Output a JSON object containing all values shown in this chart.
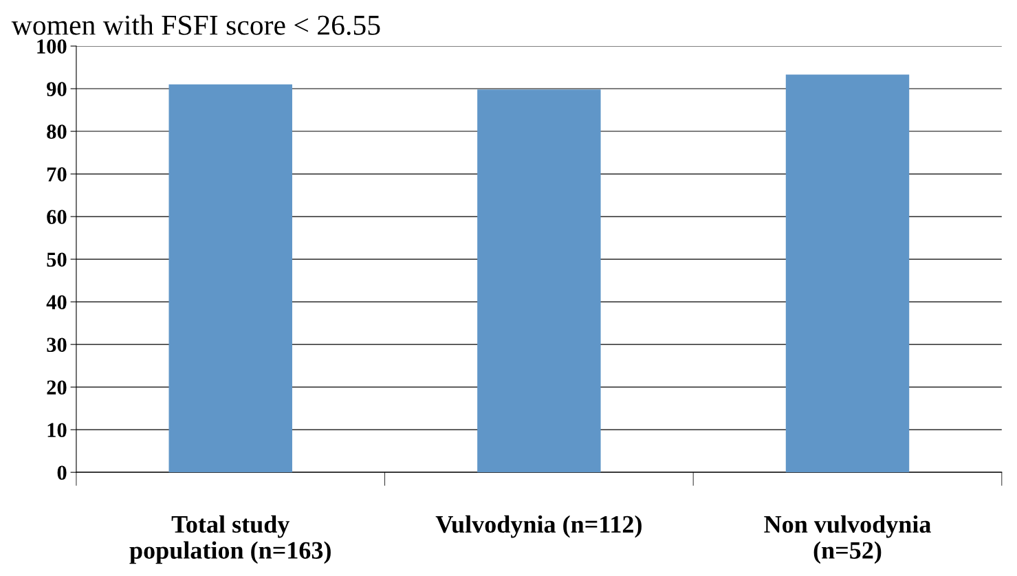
{
  "chart_data": {
    "type": "bar",
    "title": "women with FSFI score < 26.55",
    "categories": [
      "Total study\npopulation (n=163)",
      "Vulvodynia (n=112)",
      "Non vulvodynia\n(n=52)"
    ],
    "values": [
      91.0,
      89.8,
      93.3
    ],
    "color": "#6096c8",
    "ylim": [
      0,
      100
    ],
    "yticks": [
      0,
      10,
      20,
      30,
      40,
      50,
      60,
      70,
      80,
      90,
      100
    ],
    "grid": "y",
    "legend": false
  }
}
